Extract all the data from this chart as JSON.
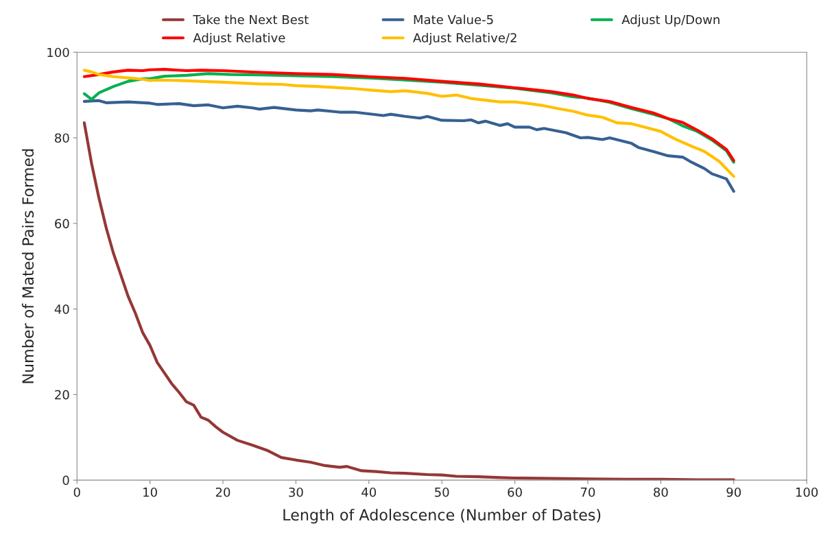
{
  "chart_data": {
    "type": "line",
    "xlabel": "Length of Adolescence (Number of Dates)",
    "ylabel": "Number of Mated Pairs Formed",
    "xlim": [
      0,
      100
    ],
    "xticks": [
      0,
      10,
      20,
      30,
      40,
      50,
      60,
      70,
      80,
      90,
      100
    ],
    "ylim": [
      0,
      100
    ],
    "yticks": [
      0,
      20,
      40,
      60,
      80,
      100
    ],
    "grid": false,
    "legend": "top",
    "marker": "none",
    "line_style": "solid",
    "series": [
      {
        "name": "Take the Next Best",
        "color": "#953735",
        "x": [
          1,
          2,
          3,
          4,
          5,
          6,
          7,
          8,
          9,
          10,
          11,
          12,
          13,
          14,
          15,
          16,
          17,
          18,
          19,
          20,
          22,
          24,
          26,
          28,
          30,
          32,
          34,
          36,
          37,
          39,
          41,
          43,
          45,
          48,
          50,
          52,
          55,
          58,
          60,
          65,
          70,
          75,
          80,
          85,
          90
        ],
        "values": [
          83.5,
          74,
          66,
          59,
          53,
          48,
          43,
          39,
          34.5,
          31.5,
          27.5,
          25,
          22.5,
          20.5,
          18.3,
          17.5,
          14.7,
          14,
          12.5,
          11.2,
          9.3,
          8.2,
          7,
          5.3,
          4.7,
          4.2,
          3.4,
          3.0,
          3.2,
          2.2,
          2.0,
          1.7,
          1.6,
          1.3,
          1.2,
          0.9,
          0.8,
          0.6,
          0.5,
          0.4,
          0.3,
          0.2,
          0.2,
          0.1,
          0.1
        ]
      },
      {
        "name": "Mate Value-5",
        "color": "#376092",
        "x": [
          1,
          3,
          4,
          7,
          10,
          11,
          14,
          16,
          18,
          20,
          22,
          24,
          25,
          27,
          30,
          32,
          33,
          36,
          38,
          40,
          42,
          43,
          45,
          47,
          48,
          50,
          53,
          54,
          55,
          56,
          58,
          59,
          60,
          62,
          63,
          64,
          67,
          69,
          70,
          72,
          73,
          76,
          77,
          79,
          81,
          83,
          84,
          86,
          87,
          89,
          90
        ],
        "values": [
          88.5,
          88.7,
          88.2,
          88.4,
          88.1,
          87.8,
          88,
          87.5,
          87.7,
          87.0,
          87.4,
          87.0,
          86.7,
          87.1,
          86.5,
          86.3,
          86.5,
          86.0,
          86.0,
          85.6,
          85.2,
          85.5,
          85.0,
          84.6,
          85.0,
          84.1,
          84.0,
          84.2,
          83.5,
          83.9,
          82.9,
          83.3,
          82.5,
          82.5,
          81.9,
          82.2,
          81.2,
          80.0,
          80.1,
          79.6,
          80.0,
          78.7,
          77.7,
          76.8,
          75.8,
          75.5,
          74.5,
          72.8,
          71.6,
          70.4,
          67.5
        ]
      },
      {
        "name": "Adjust Up/Down",
        "color": "#00b050",
        "x": [
          1,
          2,
          3,
          5,
          7,
          9,
          10,
          12,
          15,
          18,
          21,
          25,
          30,
          35,
          40,
          45,
          50,
          55,
          60,
          65,
          68,
          70,
          73,
          76,
          79,
          81,
          83,
          85,
          87,
          89,
          90
        ],
        "values": [
          90.3,
          89.0,
          90.5,
          92,
          93.2,
          93.8,
          93.8,
          94.4,
          94.6,
          95.0,
          94.8,
          94.7,
          94.5,
          94.3,
          94.0,
          93.5,
          93.0,
          92.3,
          91.6,
          90.5,
          89.6,
          89.3,
          88.3,
          86.8,
          85.5,
          84.5,
          82.8,
          81.5,
          79.5,
          77,
          74.3
        ]
      },
      {
        "name": "Adjust Relative",
        "color": "#ff0000",
        "x": [
          1,
          3,
          5,
          7,
          9,
          10,
          12,
          15,
          17,
          20,
          25,
          30,
          35,
          40,
          45,
          50,
          55,
          60,
          65,
          68,
          70,
          73,
          76,
          79,
          81,
          83,
          85,
          87,
          89,
          90
        ],
        "values": [
          94.3,
          94.8,
          95.4,
          95.8,
          95.7,
          95.9,
          96.0,
          95.7,
          95.8,
          95.7,
          95.3,
          95.0,
          94.8,
          94.3,
          93.9,
          93.2,
          92.6,
          91.7,
          90.8,
          90.0,
          89.2,
          88.5,
          87.1,
          85.8,
          84.5,
          83.6,
          81.8,
          79.8,
          77.3,
          74.7
        ]
      },
      {
        "name": "Adjust Relative/2",
        "color": "#ffc000",
        "x": [
          1,
          2,
          3,
          5,
          7,
          9,
          10,
          11,
          14,
          17,
          20,
          25,
          28,
          30,
          33,
          35,
          38,
          40,
          43,
          45,
          48,
          50,
          52,
          54,
          56,
          58,
          60,
          62,
          64,
          66,
          68,
          70,
          72,
          74,
          76,
          78,
          80,
          82,
          84,
          86,
          88,
          90
        ],
        "values": [
          95.8,
          95.4,
          94.8,
          94.3,
          94.0,
          93.7,
          93.4,
          93.5,
          93.4,
          93.2,
          93.0,
          92.6,
          92.5,
          92.2,
          92.0,
          91.8,
          91.5,
          91.2,
          90.8,
          91.0,
          90.4,
          89.7,
          90.0,
          89.2,
          88.8,
          88.4,
          88.4,
          88.0,
          87.5,
          86.8,
          86.2,
          85.3,
          84.8,
          83.5,
          83.3,
          82.4,
          81.5,
          79.7,
          78.2,
          76.8,
          74.5,
          71.0
        ]
      }
    ]
  }
}
